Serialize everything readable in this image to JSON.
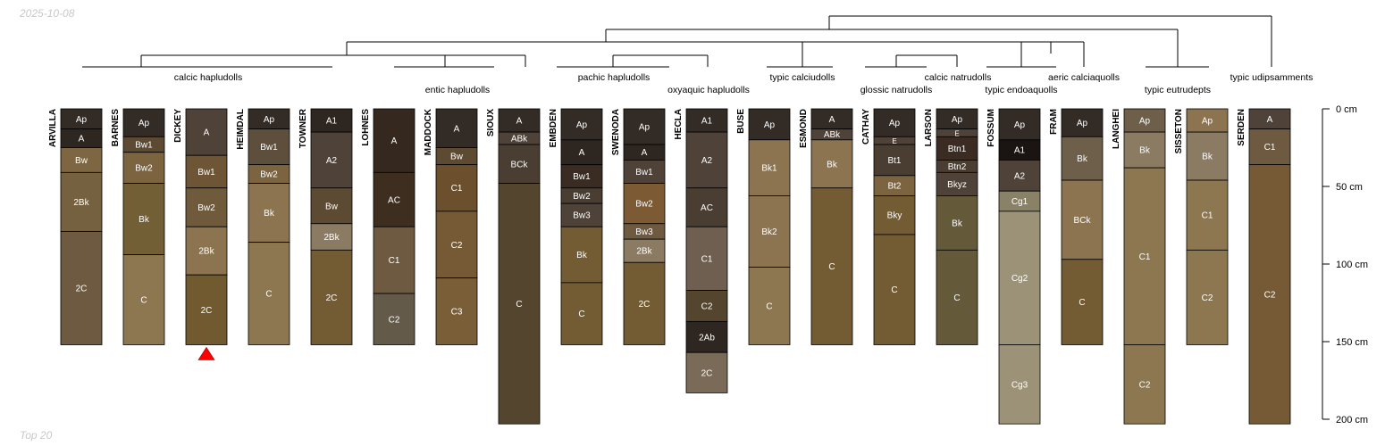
{
  "date": "2025-10-08",
  "footer": "Top 20",
  "depth_axis": {
    "unit": "cm",
    "ticks": [
      {
        "value": 0,
        "label": "0 cm"
      },
      {
        "value": 50,
        "label": "50 cm"
      },
      {
        "value": 100,
        "label": "100 cm"
      },
      {
        "value": 150,
        "label": "150 cm"
      },
      {
        "value": 200,
        "label": "200 cm"
      }
    ]
  },
  "groups": [
    {
      "label": "calcic hapludolls"
    },
    {
      "label": "entic hapludolls"
    },
    {
      "label": "pachic hapludolls"
    },
    {
      "label": "oxyaquic hapludolls"
    },
    {
      "label": "typic calciudolls"
    },
    {
      "label": "glossic natrudolls"
    },
    {
      "label": "calcic natrudolls"
    },
    {
      "label": "typic endoaquolls"
    },
    {
      "label": "aeric calciaquolls"
    },
    {
      "label": "typic eutrudepts"
    },
    {
      "label": "typic udipsamments"
    }
  ],
  "profiles": [
    {
      "name": "ARVILLA",
      "horizons": [
        {
          "name": "Ap",
          "top": 0,
          "bottom": 13,
          "color": "#332b25"
        },
        {
          "name": "A",
          "top": 13,
          "bottom": 25,
          "color": "#2e2620"
        },
        {
          "name": "Bw",
          "top": 25,
          "bottom": 41,
          "color": "#7e6642"
        },
        {
          "name": "2Bk",
          "top": 41,
          "bottom": 79,
          "color": "#75603f"
        },
        {
          "name": "2C",
          "top": 79,
          "bottom": 152,
          "color": "#6e5a41"
        }
      ]
    },
    {
      "name": "BARNES",
      "horizons": [
        {
          "name": "Ap",
          "top": 0,
          "bottom": 18,
          "color": "#332b25"
        },
        {
          "name": "Bw1",
          "top": 18,
          "bottom": 28,
          "color": "#5c4a33"
        },
        {
          "name": "Bw2",
          "top": 28,
          "bottom": 48,
          "color": "#7c6440"
        },
        {
          "name": "Bk",
          "top": 48,
          "bottom": 94,
          "color": "#735f36"
        },
        {
          "name": "C",
          "top": 94,
          "bottom": 152,
          "color": "#8d7750"
        }
      ]
    },
    {
      "name": "DICKEY",
      "marker": true,
      "horizons": [
        {
          "name": "A",
          "top": 0,
          "bottom": 30,
          "color": "#4f4238"
        },
        {
          "name": "Bw1",
          "top": 30,
          "bottom": 51,
          "color": "#6e5535"
        },
        {
          "name": "Bw2",
          "top": 51,
          "bottom": 76,
          "color": "#6f5a3c"
        },
        {
          "name": "2Bk",
          "top": 76,
          "bottom": 107,
          "color": "#8c7450"
        },
        {
          "name": "2C",
          "top": 107,
          "bottom": 152,
          "color": "#725a30"
        }
      ]
    },
    {
      "name": "HEIMDAL",
      "horizons": [
        {
          "name": "Ap",
          "top": 0,
          "bottom": 13,
          "color": "#332b25"
        },
        {
          "name": "Bw1",
          "top": 13,
          "bottom": 36,
          "color": "#5e4f3c"
        },
        {
          "name": "Bw2",
          "top": 36,
          "bottom": 48,
          "color": "#7c6440"
        },
        {
          "name": "Bk",
          "top": 48,
          "bottom": 86,
          "color": "#8c7450"
        },
        {
          "name": "C",
          "top": 86,
          "bottom": 152,
          "color": "#8d7750"
        }
      ]
    },
    {
      "name": "TOWNER",
      "horizons": [
        {
          "name": "A1",
          "top": 0,
          "bottom": 15,
          "color": "#2e2620"
        },
        {
          "name": "A2",
          "top": 15,
          "bottom": 51,
          "color": "#4f4238"
        },
        {
          "name": "Bw",
          "top": 51,
          "bottom": 74,
          "color": "#5c4a33"
        },
        {
          "name": "2Bk",
          "top": 74,
          "bottom": 91,
          "color": "#8a7b62"
        },
        {
          "name": "2C",
          "top": 91,
          "bottom": 152,
          "color": "#735c34"
        }
      ]
    },
    {
      "name": "LOHNES",
      "horizons": [
        {
          "name": "A",
          "top": 0,
          "bottom": 41,
          "color": "#35291f"
        },
        {
          "name": "AC",
          "top": 41,
          "bottom": 76,
          "color": "#3d2e20"
        },
        {
          "name": "C1",
          "top": 76,
          "bottom": 119,
          "color": "#6e5a41"
        },
        {
          "name": "C2",
          "top": 119,
          "bottom": 152,
          "color": "#645a4a"
        }
      ]
    },
    {
      "name": "MADDOCK",
      "horizons": [
        {
          "name": "A",
          "top": 0,
          "bottom": 25,
          "color": "#332b25"
        },
        {
          "name": "Bw",
          "top": 25,
          "bottom": 36,
          "color": "#5c4a33"
        },
        {
          "name": "C1",
          "top": 36,
          "bottom": 66,
          "color": "#6c4f2c"
        },
        {
          "name": "C2",
          "top": 66,
          "bottom": 109,
          "color": "#765a35"
        },
        {
          "name": "C3",
          "top": 109,
          "bottom": 152,
          "color": "#7a5e38"
        }
      ]
    },
    {
      "name": "SIOUX",
      "horizons": [
        {
          "name": "A",
          "top": 0,
          "bottom": 15,
          "color": "#332b25"
        },
        {
          "name": "ABk",
          "top": 15,
          "bottom": 23,
          "color": "#4f4238"
        },
        {
          "name": "BCk",
          "top": 23,
          "bottom": 48,
          "color": "#4a3e33"
        },
        {
          "name": "C",
          "top": 48,
          "bottom": 203,
          "color": "#54452e"
        }
      ]
    },
    {
      "name": "EMBDEN",
      "horizons": [
        {
          "name": "Ap",
          "top": 0,
          "bottom": 20,
          "color": "#332b25"
        },
        {
          "name": "A",
          "top": 20,
          "bottom": 36,
          "color": "#2e2620"
        },
        {
          "name": "Bw1",
          "top": 36,
          "bottom": 51,
          "color": "#3a2c22"
        },
        {
          "name": "Bw2",
          "top": 51,
          "bottom": 61,
          "color": "#4a3d32"
        },
        {
          "name": "Bw3",
          "top": 61,
          "bottom": 76,
          "color": "#4f4238"
        },
        {
          "name": "Bk",
          "top": 76,
          "bottom": 112,
          "color": "#735c34"
        },
        {
          "name": "C",
          "top": 112,
          "bottom": 152,
          "color": "#735c34"
        }
      ]
    },
    {
      "name": "SWENODA",
      "horizons": [
        {
          "name": "Ap",
          "top": 0,
          "bottom": 23,
          "color": "#332b25"
        },
        {
          "name": "A",
          "top": 23,
          "bottom": 33,
          "color": "#2e2620"
        },
        {
          "name": "Bw1",
          "top": 33,
          "bottom": 48,
          "color": "#4f4238"
        },
        {
          "name": "Bw2",
          "top": 48,
          "bottom": 74,
          "color": "#7c5a34"
        },
        {
          "name": "Bw3",
          "top": 74,
          "bottom": 84,
          "color": "#6e5a41"
        },
        {
          "name": "2Bk",
          "top": 84,
          "bottom": 99,
          "color": "#8a7b62"
        },
        {
          "name": "2C",
          "top": 99,
          "bottom": 152,
          "color": "#735c34"
        }
      ]
    },
    {
      "name": "HECLA",
      "horizons": [
        {
          "name": "A1",
          "top": 0,
          "bottom": 15,
          "color": "#332b25"
        },
        {
          "name": "A2",
          "top": 15,
          "bottom": 51,
          "color": "#4f4238"
        },
        {
          "name": "AC",
          "top": 51,
          "bottom": 76,
          "color": "#4a3e33"
        },
        {
          "name": "C1",
          "top": 76,
          "bottom": 117,
          "color": "#6e5f50"
        },
        {
          "name": "C2",
          "top": 117,
          "bottom": 137,
          "color": "#54452e"
        },
        {
          "name": "2Ab",
          "top": 137,
          "bottom": 157,
          "color": "#2e2620"
        },
        {
          "name": "2C",
          "top": 157,
          "bottom": 183,
          "color": "#7a6a58"
        }
      ]
    },
    {
      "name": "BUSE",
      "horizons": [
        {
          "name": "Ap",
          "top": 0,
          "bottom": 20,
          "color": "#332b25"
        },
        {
          "name": "Bk1",
          "top": 20,
          "bottom": 56,
          "color": "#8c7450"
        },
        {
          "name": "Bk2",
          "top": 56,
          "bottom": 102,
          "color": "#8c7450"
        },
        {
          "name": "C",
          "top": 102,
          "bottom": 152,
          "color": "#8d7750"
        }
      ]
    },
    {
      "name": "ESMOND",
      "horizons": [
        {
          "name": "A",
          "top": 0,
          "bottom": 13,
          "color": "#332b25"
        },
        {
          "name": "ABk",
          "top": 13,
          "bottom": 20,
          "color": "#4f4238"
        },
        {
          "name": "Bk",
          "top": 20,
          "bottom": 51,
          "color": "#8c7450"
        },
        {
          "name": "C",
          "top": 51,
          "bottom": 152,
          "color": "#735c34"
        }
      ]
    },
    {
      "name": "CATHAY",
      "horizons": [
        {
          "name": "Ap",
          "top": 0,
          "bottom": 18,
          "color": "#332b25"
        },
        {
          "name": "E",
          "top": 18,
          "bottom": 23,
          "color": "#4f4238"
        },
        {
          "name": "Bt1",
          "top": 23,
          "bottom": 43,
          "color": "#4a3d32"
        },
        {
          "name": "Bt2",
          "top": 43,
          "bottom": 56,
          "color": "#7c6440"
        },
        {
          "name": "Bky",
          "top": 56,
          "bottom": 81,
          "color": "#735c34"
        },
        {
          "name": "C",
          "top": 81,
          "bottom": 152,
          "color": "#735c34"
        }
      ]
    },
    {
      "name": "LARSON",
      "horizons": [
        {
          "name": "Ap",
          "top": 0,
          "bottom": 13,
          "color": "#332b25"
        },
        {
          "name": "E",
          "top": 13,
          "bottom": 18,
          "color": "#4f4238"
        },
        {
          "name": "Btn1",
          "top": 18,
          "bottom": 33,
          "color": "#3a2c22"
        },
        {
          "name": "Btn2",
          "top": 33,
          "bottom": 41,
          "color": "#4a3d32"
        },
        {
          "name": "Bkyz",
          "top": 41,
          "bottom": 56,
          "color": "#4f4238"
        },
        {
          "name": "Bk",
          "top": 56,
          "bottom": 91,
          "color": "#645a3a"
        },
        {
          "name": "C",
          "top": 91,
          "bottom": 152,
          "color": "#645a3a"
        }
      ]
    },
    {
      "name": "FOSSUM",
      "horizons": [
        {
          "name": "Ap",
          "top": 0,
          "bottom": 20,
          "color": "#332b25"
        },
        {
          "name": "A1",
          "top": 20,
          "bottom": 33,
          "color": "#1a1512"
        },
        {
          "name": "A2",
          "top": 33,
          "bottom": 53,
          "color": "#4f4238"
        },
        {
          "name": "Cg1",
          "top": 53,
          "bottom": 66,
          "color": "#8a8267"
        },
        {
          "name": "Cg2",
          "top": 66,
          "bottom": 152,
          "color": "#9c9277"
        },
        {
          "name": "Cg3",
          "top": 152,
          "bottom": 203,
          "color": "#9c9277"
        }
      ]
    },
    {
      "name": "FRAM",
      "horizons": [
        {
          "name": "Ap",
          "top": 0,
          "bottom": 18,
          "color": "#332b25"
        },
        {
          "name": "Bk",
          "top": 18,
          "bottom": 46,
          "color": "#6e5f4a"
        },
        {
          "name": "BCk",
          "top": 46,
          "bottom": 97,
          "color": "#8c7450"
        },
        {
          "name": "C",
          "top": 97,
          "bottom": 152,
          "color": "#735c34"
        }
      ]
    },
    {
      "name": "LANGHEI",
      "horizons": [
        {
          "name": "Ap",
          "top": 0,
          "bottom": 15,
          "color": "#6e5f4a"
        },
        {
          "name": "Bk",
          "top": 15,
          "bottom": 38,
          "color": "#8a7b62"
        },
        {
          "name": "C1",
          "top": 38,
          "bottom": 152,
          "color": "#8d7750"
        },
        {
          "name": "C2",
          "top": 152,
          "bottom": 203,
          "color": "#8d7750"
        }
      ]
    },
    {
      "name": "SISSETON",
      "horizons": [
        {
          "name": "Ap",
          "top": 0,
          "bottom": 15,
          "color": "#8c7450"
        },
        {
          "name": "Bk",
          "top": 15,
          "bottom": 46,
          "color": "#8a7b62"
        },
        {
          "name": "C1",
          "top": 46,
          "bottom": 91,
          "color": "#8d7750"
        },
        {
          "name": "C2",
          "top": 91,
          "bottom": 152,
          "color": "#8d7750"
        }
      ]
    },
    {
      "name": "SERDEN",
      "horizons": [
        {
          "name": "A",
          "top": 0,
          "bottom": 13,
          "color": "#4f4238"
        },
        {
          "name": "C1",
          "top": 13,
          "bottom": 36,
          "color": "#6e5a41"
        },
        {
          "name": "C2",
          "top": 36,
          "bottom": 203,
          "color": "#765a35"
        }
      ]
    }
  ]
}
